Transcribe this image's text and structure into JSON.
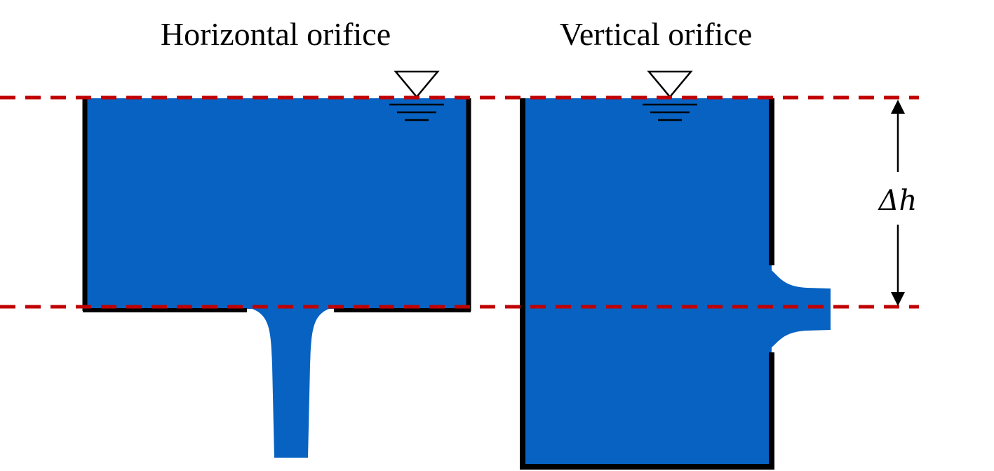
{
  "titles": {
    "left": "Horizontal orifice",
    "right": "Vertical orifice"
  },
  "dimension_label": "Δh",
  "colors": {
    "water": "#0762c2",
    "wall": "#000000",
    "reference_line": "#c00000",
    "background": "#ffffff"
  },
  "icons": {
    "free_surface_symbol": "inverted-triangle-water-level"
  }
}
